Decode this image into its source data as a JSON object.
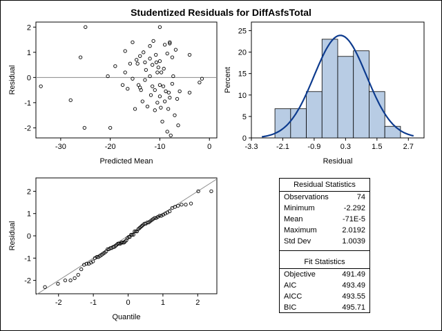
{
  "title": "Studentized Residuals for DiffAsfsTotal",
  "chart_data": [
    {
      "type": "scatter",
      "xlabel": "Predicted Mean",
      "ylabel": "Residual",
      "xlim": [
        -35,
        1.5
      ],
      "ylim": [
        -2.4,
        2.2
      ],
      "xticks": [
        -30,
        -20,
        -10,
        0
      ],
      "yticks": [
        -2,
        -1,
        0,
        1,
        2
      ],
      "reference_line_y": 0,
      "points": [
        [
          -34,
          -0.35
        ],
        [
          -28,
          -0.9
        ],
        [
          -25.2,
          -2.0
        ],
        [
          -25,
          2.0
        ],
        [
          -26,
          0.8
        ],
        [
          -20,
          -2.0
        ],
        [
          -20.5,
          0.05
        ],
        [
          -19,
          0.45
        ],
        [
          -17.5,
          -0.3
        ],
        [
          -17,
          0.2
        ],
        [
          -17,
          1.05
        ],
        [
          -16.5,
          -0.45
        ],
        [
          -16,
          0.55
        ],
        [
          -15.5,
          1.4
        ],
        [
          -15.5,
          -0.05
        ],
        [
          -15,
          -1.25
        ],
        [
          -14.7,
          0.7
        ],
        [
          -14.5,
          0.55
        ],
        [
          -14.3,
          -0.3
        ],
        [
          -14,
          -0.4
        ],
        [
          -14,
          0.85
        ],
        [
          -13.8,
          -0.5
        ],
        [
          -13.5,
          -0.95
        ],
        [
          -13.3,
          1.0
        ],
        [
          -13,
          0.6
        ],
        [
          -13,
          -0.1
        ],
        [
          -12.8,
          0.3
        ],
        [
          -12.5,
          -1.15
        ],
        [
          -12,
          1.25
        ],
        [
          -12,
          0.75
        ],
        [
          -12,
          0.05
        ],
        [
          -11.8,
          -0.7
        ],
        [
          -11.5,
          -0.35
        ],
        [
          -11.5,
          0.5
        ],
        [
          -11.3,
          1.45
        ],
        [
          -11,
          -1.3
        ],
        [
          -11,
          -0.5
        ],
        [
          -10.8,
          0.9
        ],
        [
          -10.7,
          0.6
        ],
        [
          -10.5,
          0.2
        ],
        [
          -10.5,
          -1.0
        ],
        [
          -10.3,
          0.4
        ],
        [
          -10,
          2.0
        ],
        [
          -10,
          0.65
        ],
        [
          -10,
          -0.3
        ],
        [
          -10,
          -0.75
        ],
        [
          -9.8,
          -1.2
        ],
        [
          -9.7,
          0.2
        ],
        [
          -9.5,
          -1.75
        ],
        [
          -9.3,
          -0.35
        ],
        [
          -9.2,
          0.35
        ],
        [
          -9,
          1.3
        ],
        [
          -9,
          -0.95
        ],
        [
          -8.8,
          -0.55
        ],
        [
          -8.5,
          0.95
        ],
        [
          -8.5,
          -2.15
        ],
        [
          -8.3,
          -1.25
        ],
        [
          -8.2,
          -0.6
        ],
        [
          -8,
          1.4
        ],
        [
          -8,
          1.35
        ],
        [
          -8,
          -0.8
        ],
        [
          -7.8,
          -2.3
        ],
        [
          -7.5,
          0.8
        ],
        [
          -7.5,
          -0.25
        ],
        [
          -7.3,
          0.05
        ],
        [
          -7,
          -1.5
        ],
        [
          -6.8,
          1.1
        ],
        [
          -6.5,
          -0.85
        ],
        [
          -6.3,
          -1.9
        ],
        [
          -6,
          -0.55
        ],
        [
          -4,
          0.9
        ],
        [
          -4,
          -0.6
        ],
        [
          -2,
          -0.2
        ],
        [
          -1.5,
          -0.05
        ]
      ]
    },
    {
      "type": "bar",
      "subtype": "histogram-with-normal-curve",
      "xlabel": "Residual",
      "ylabel": "Percent",
      "bin_width": 0.6,
      "bin_centers": [
        -2.1,
        -1.5,
        -0.9,
        -0.3,
        0.3,
        0.9,
        1.5,
        2.1
      ],
      "values": [
        6.8,
        6.8,
        10.8,
        23.0,
        19.0,
        20.3,
        10.8,
        2.7
      ],
      "xlim": [
        -3.3,
        3.3
      ],
      "ylim": [
        0,
        27
      ],
      "xticks": [
        -3.3,
        -2.1,
        -0.9,
        0.3,
        1.5,
        2.7
      ],
      "yticks": [
        0,
        5,
        10,
        15,
        20,
        25
      ],
      "normal_curve": {
        "mean": 0.1,
        "sd": 1.0,
        "peak_percent": 23.9,
        "range": [
          -2.9,
          2.9
        ]
      },
      "bar_color": "#b8cce4",
      "curve_color": "#0d3b8e"
    },
    {
      "type": "scatter",
      "subtype": "qq-plot",
      "xlabel": "Quantile",
      "ylabel": "Residual",
      "xlim": [
        -2.65,
        2.55
      ],
      "ylim": [
        -2.6,
        2.6
      ],
      "xticks": [
        -2,
        -1,
        0,
        1,
        2
      ],
      "yticks": [
        -2,
        -1,
        0,
        1,
        2
      ],
      "reference_line": {
        "intercept": 0,
        "slope": 1
      }
    }
  ],
  "residual_statistics": {
    "title": "Residual Statistics",
    "rows": [
      {
        "label": "Observations",
        "value": "74"
      },
      {
        "label": "Minimum",
        "value": "-2.292"
      },
      {
        "label": "Mean",
        "value": "-71E-5"
      },
      {
        "label": "Maximum",
        "value": "2.0192"
      },
      {
        "label": "Std Dev",
        "value": "1.0039"
      }
    ]
  },
  "fit_statistics": {
    "title": "Fit Statistics",
    "rows": [
      {
        "label": "Objective",
        "value": "491.49"
      },
      {
        "label": "AIC",
        "value": "493.49"
      },
      {
        "label": "AICC",
        "value": "493.55"
      },
      {
        "label": "BIC",
        "value": "495.71"
      }
    ]
  }
}
